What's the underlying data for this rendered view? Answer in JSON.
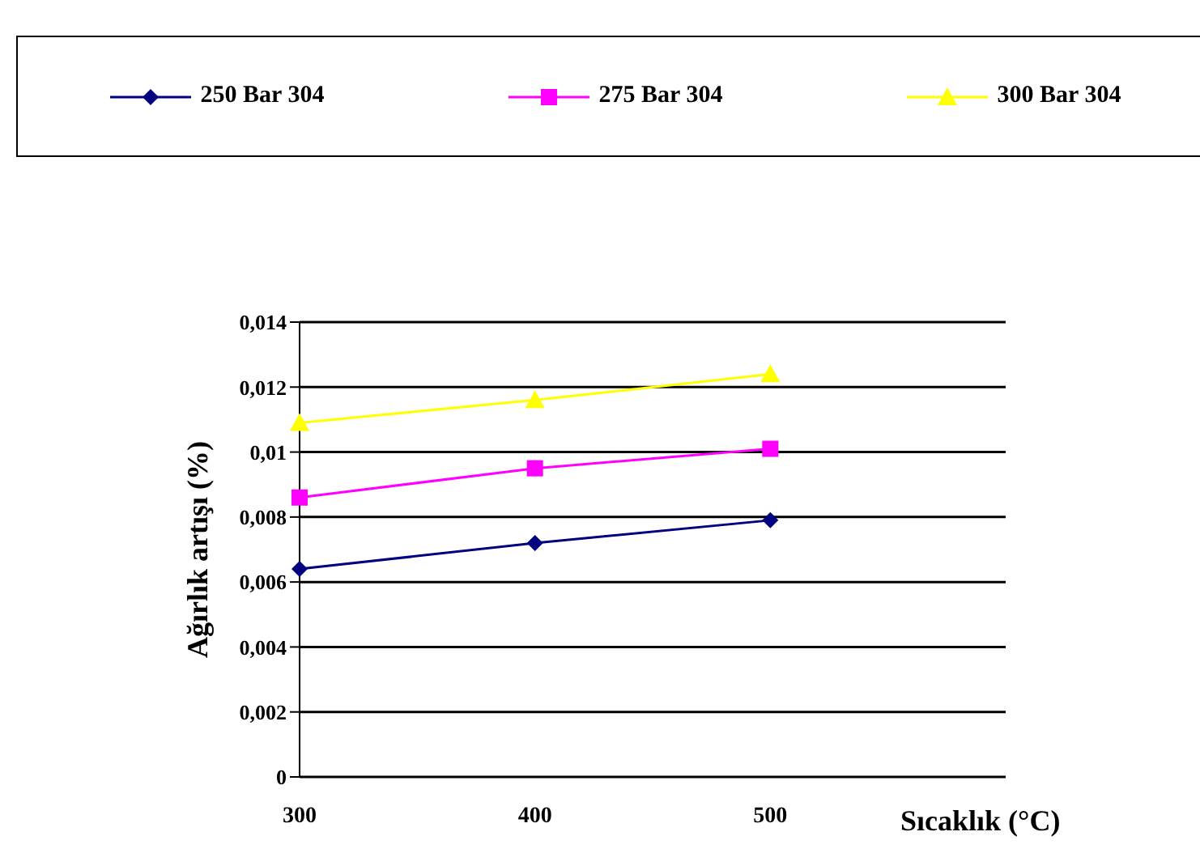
{
  "chart_data": {
    "type": "line",
    "xlabel": "Sıcaklık (°C)",
    "ylabel": "Ağırlık artışı (%)",
    "categories": [
      "300",
      "400",
      "500",
      null
    ],
    "series": [
      {
        "name": "250 Bar 304",
        "color": "#000080",
        "marker": "diamond",
        "values": [
          0.0064,
          0.0072,
          0.0079,
          null
        ]
      },
      {
        "name": "275 Bar 304",
        "color": "#ff00ff",
        "marker": "square",
        "values": [
          0.0086,
          0.0095,
          0.0101,
          null
        ]
      },
      {
        "name": "300 Bar 304",
        "color": "#ffff00",
        "marker": "triangle",
        "values": [
          0.0109,
          0.0116,
          0.0124,
          null
        ]
      }
    ],
    "ylim": [
      0,
      0.014
    ],
    "yticks": [
      {
        "value": 0,
        "label": "0"
      },
      {
        "value": 0.002,
        "label": "0,002"
      },
      {
        "value": 0.004,
        "label": "0,004"
      },
      {
        "value": 0.006,
        "label": "0,006"
      },
      {
        "value": 0.008,
        "label": "0,008"
      },
      {
        "value": 0.01,
        "label": "0,01"
      },
      {
        "value": 0.012,
        "label": "0,012"
      },
      {
        "value": 0.014,
        "label": "0,014"
      }
    ],
    "grid": "y",
    "legend": "top"
  }
}
